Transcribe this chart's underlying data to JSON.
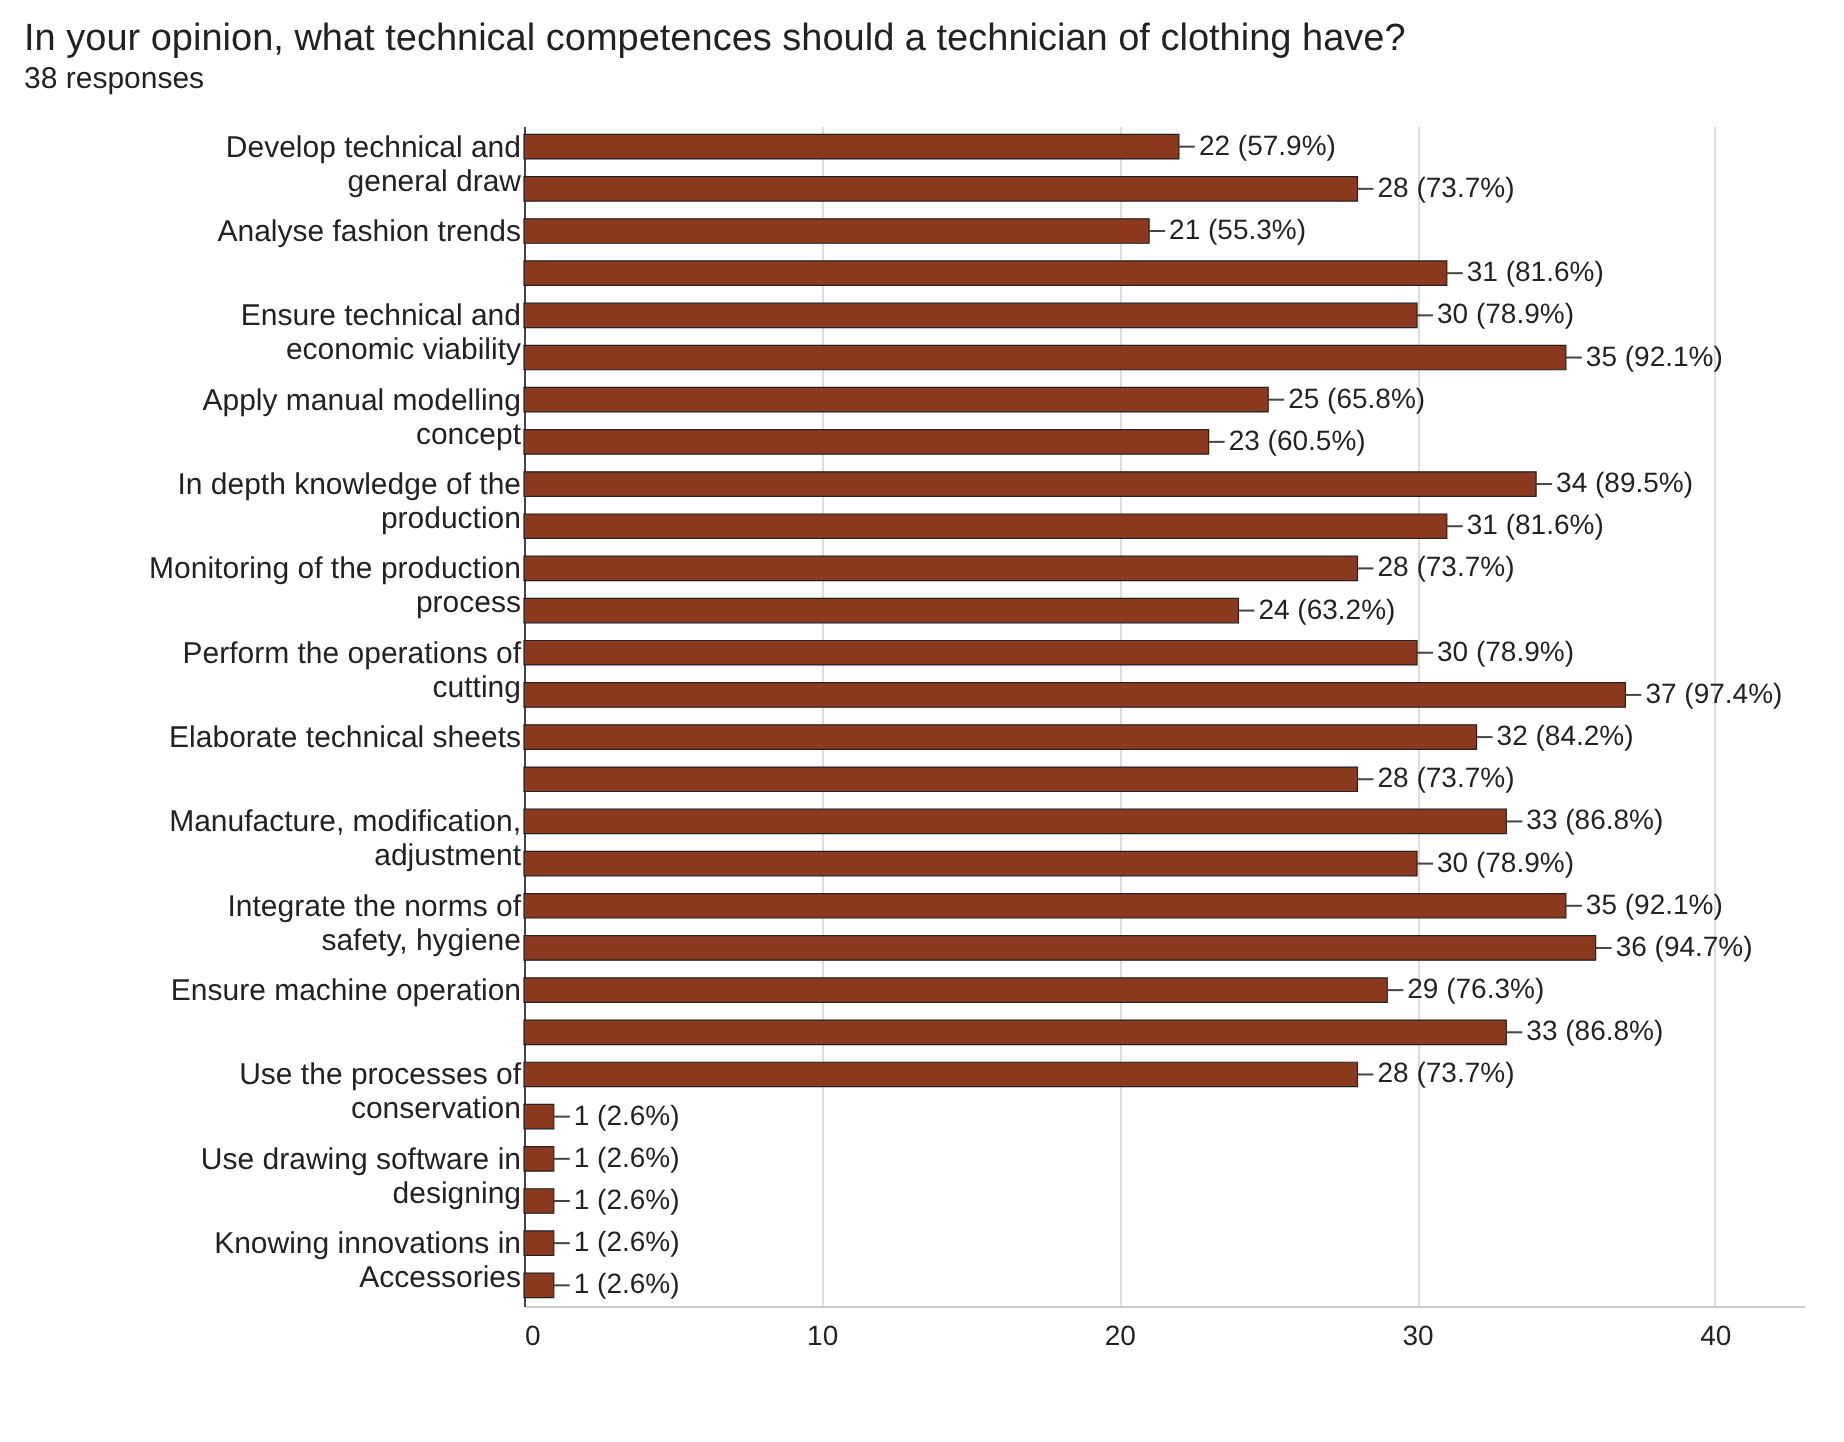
{
  "chart_data": {
    "type": "bar",
    "orientation": "horizontal",
    "title": "In your opinion, what technical competences should a technician of clothing have?",
    "subtitle": "38 responses",
    "categories": [
      "Develop technical and general draw",
      null,
      "Analyse fashion trends",
      null,
      "Ensure technical and economic viability",
      null,
      "Apply manual modelling concept",
      null,
      "In depth knowledge of the production",
      null,
      "Monitoring of the production process",
      null,
      "Perform the operations of cutting",
      null,
      "Elaborate technical sheets",
      null,
      "Manufacture, modification, adjustment",
      null,
      "Integrate the norms of safety, hygiene",
      null,
      "Ensure machine operation",
      null,
      "Use the processes of conservation",
      null,
      "Use drawing software in designing",
      null,
      "Knowing innovations in Accessories",
      null
    ],
    "values": [
      22,
      28,
      21,
      31,
      30,
      35,
      25,
      23,
      34,
      31,
      28,
      24,
      30,
      37,
      32,
      28,
      33,
      30,
      35,
      36,
      29,
      33,
      28,
      1,
      1,
      1,
      1,
      1
    ],
    "value_labels": [
      "22 (57.9%)",
      "28 (73.7%)",
      "21 (55.3%)",
      "31 (81.6%)",
      "30 (78.9%)",
      "35 (92.1%)",
      "25 (65.8%)",
      "23 (60.5%)",
      "34 (89.5%)",
      "31 (81.6%)",
      "28 (73.7%)",
      "24 (63.2%)",
      "30 (78.9%)",
      "37 (97.4%)",
      "32 (84.2%)",
      "28 (73.7%)",
      "33 (86.8%)",
      "30 (78.9%)",
      "35 (92.1%)",
      "36 (94.7%)",
      "29 (76.3%)",
      "33 (86.8%)",
      "28 (73.7%)",
      "1 (2.6%)",
      "1 (2.6%)",
      "1 (2.6%)",
      "1 (2.6%)",
      "1 (2.6%)"
    ],
    "color": "#8b3a1f",
    "xlim": [
      0,
      43
    ],
    "xticks": [
      0,
      10,
      20,
      30,
      40
    ],
    "grid": "x"
  }
}
